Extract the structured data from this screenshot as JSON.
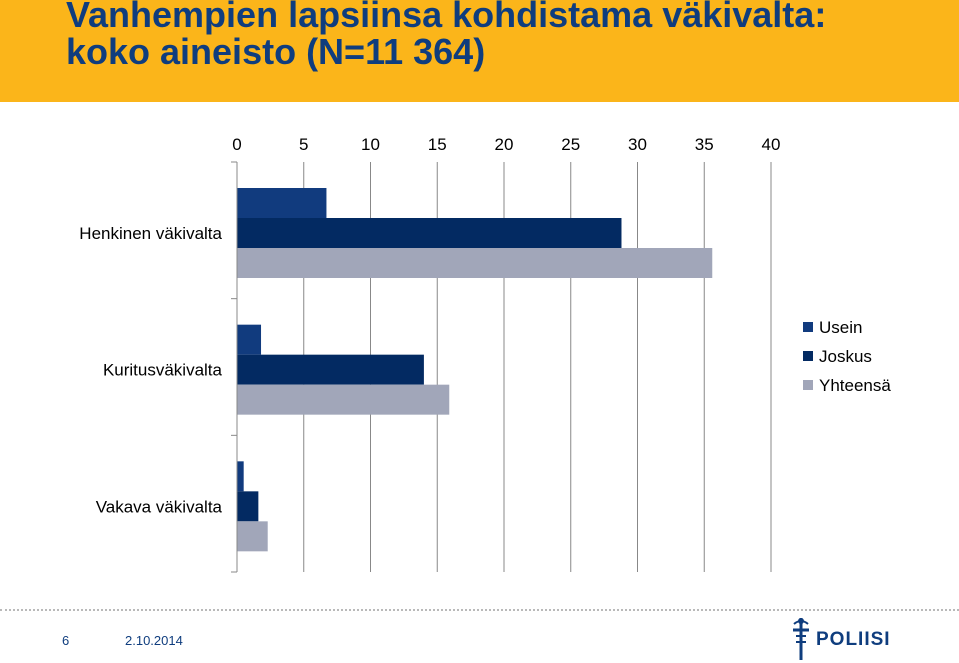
{
  "header": {
    "title_line1": "Vanhempien lapsiinsa kohdistama väkivalta:",
    "title_line2": "koko aineisto (N=11 364)"
  },
  "chart_data": {
    "type": "bar",
    "orientation": "horizontal",
    "categories": [
      "Henkinen väkivalta",
      "Kuritusväkivalta",
      "Vakava väkivalta"
    ],
    "series": [
      {
        "name": "Usein",
        "values": [
          6.7,
          1.8,
          0.5
        ],
        "color": "#113b7e"
      },
      {
        "name": "Joskus",
        "values": [
          28.8,
          14.0,
          1.6
        ],
        "color": "#032a62"
      },
      {
        "name": "Yhteensä",
        "values": [
          35.6,
          15.9,
          2.3
        ],
        "color": "#a1a6b9"
      }
    ],
    "xlim": [
      0,
      40
    ],
    "x_ticks": [
      "0",
      "5",
      "10",
      "15",
      "20",
      "25",
      "30",
      "35",
      "40"
    ],
    "x_axis_position": "top",
    "grid": true,
    "legend_position": "right"
  },
  "footer": {
    "page_number": "6",
    "date": "2.10.2014",
    "logo_text": "POLIISI"
  },
  "colors": {
    "header_band": "#fbb51a",
    "title_text": "#0f3d7e",
    "gridline": "#888888"
  },
  "icons": {
    "logo_emblem": "sword-emblem-icon"
  }
}
